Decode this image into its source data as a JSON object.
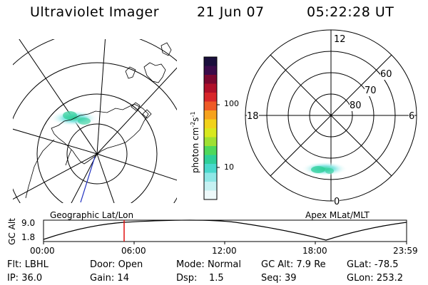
{
  "header": {
    "title": "Ultraviolet Imager",
    "date": "21 Jun 07",
    "time": "05:22:28 UT"
  },
  "colorbar": {
    "unit_label": "photon cm",
    "unit_sup1": "-2",
    "unit_mid": "s",
    "unit_sup2": "-1",
    "ticks": [
      "100",
      "10"
    ],
    "colors": [
      "#1a0f3c",
      "#3b0b4a",
      "#7a0830",
      "#b0102a",
      "#d8262a",
      "#ee5a26",
      "#f6a21d",
      "#f1d21a",
      "#d8e81f",
      "#9fe032",
      "#4fd85b",
      "#2fcf99",
      "#49d8cc",
      "#8ee7e6",
      "#c5f1f2",
      "#eef9fa"
    ]
  },
  "geographic_map": {
    "label": "Geographic Lat/Lon",
    "footprint_color": "#2030c0"
  },
  "polar_map": {
    "label": "Apex MLat/MLT",
    "mlt_labels": {
      "top": "12",
      "left": "18",
      "right": "6",
      "bottom": "0"
    },
    "lat_labels": [
      "60",
      "70",
      "80"
    ]
  },
  "timeline": {
    "axis_label": "GC Alt",
    "ylabels": [
      "9.0",
      "1.8"
    ],
    "xlabels": [
      "00:00",
      "06:00",
      "12:00",
      "18:00",
      "23:59"
    ],
    "marker_color": "#e01010"
  },
  "footer": {
    "flt_label": "Flt:",
    "flt_value": "LBHL",
    "ip_label": "IP:",
    "ip_value": "36.0",
    "door_label": "Door:",
    "door_value": "Open",
    "gain_label": "Gain:",
    "gain_value": "14",
    "mode_label": "Mode:",
    "mode_value": "Normal",
    "dsp_label": "Dsp:",
    "dsp_value": "1.5",
    "gcalt_label": "GC Alt:",
    "gcalt_value": "7.9 Re",
    "seq_label": "Seq:",
    "seq_value": "39",
    "glat_label": "GLat:",
    "glat_value": "-78.5",
    "glon_label": "GLon:",
    "glon_value": "253.2"
  }
}
